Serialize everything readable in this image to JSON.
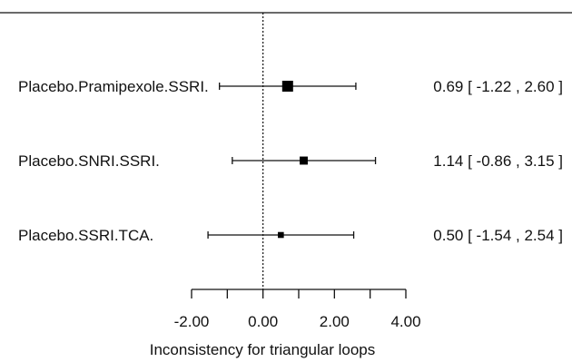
{
  "chart_data": {
    "type": "forest",
    "title": "",
    "xlabel": "Inconsistency for triangular loops",
    "xlim": [
      -2.0,
      4.0
    ],
    "xticks": [
      -2,
      -1,
      0,
      1,
      2,
      3,
      4
    ],
    "xtick_labels": [
      "-2.00",
      "0.00",
      "2.00",
      "4.00"
    ],
    "xtick_label_values": [
      -2,
      0,
      2,
      4
    ],
    "reference_line": 0,
    "grid": false,
    "rows": [
      {
        "label": "Placebo.Pramipexole.SSRI.",
        "estimate": 0.69,
        "lower": -1.22,
        "upper": 2.6,
        "ci_text": "0.69 [ -1.22 , 2.60 ]",
        "weight": 1.0
      },
      {
        "label": "Placebo.SNRI.SSRI.",
        "estimate": 1.14,
        "lower": -0.86,
        "upper": 3.15,
        "ci_text": "1.14 [ -0.86 , 3.15 ]",
        "weight": 0.55
      },
      {
        "label": "Placebo.SSRI.TCA.",
        "estimate": 0.5,
        "lower": -1.54,
        "upper": 2.54,
        "ci_text": "0.50 [ -1.54 , 2.54 ]",
        "weight": 0.3
      }
    ]
  }
}
